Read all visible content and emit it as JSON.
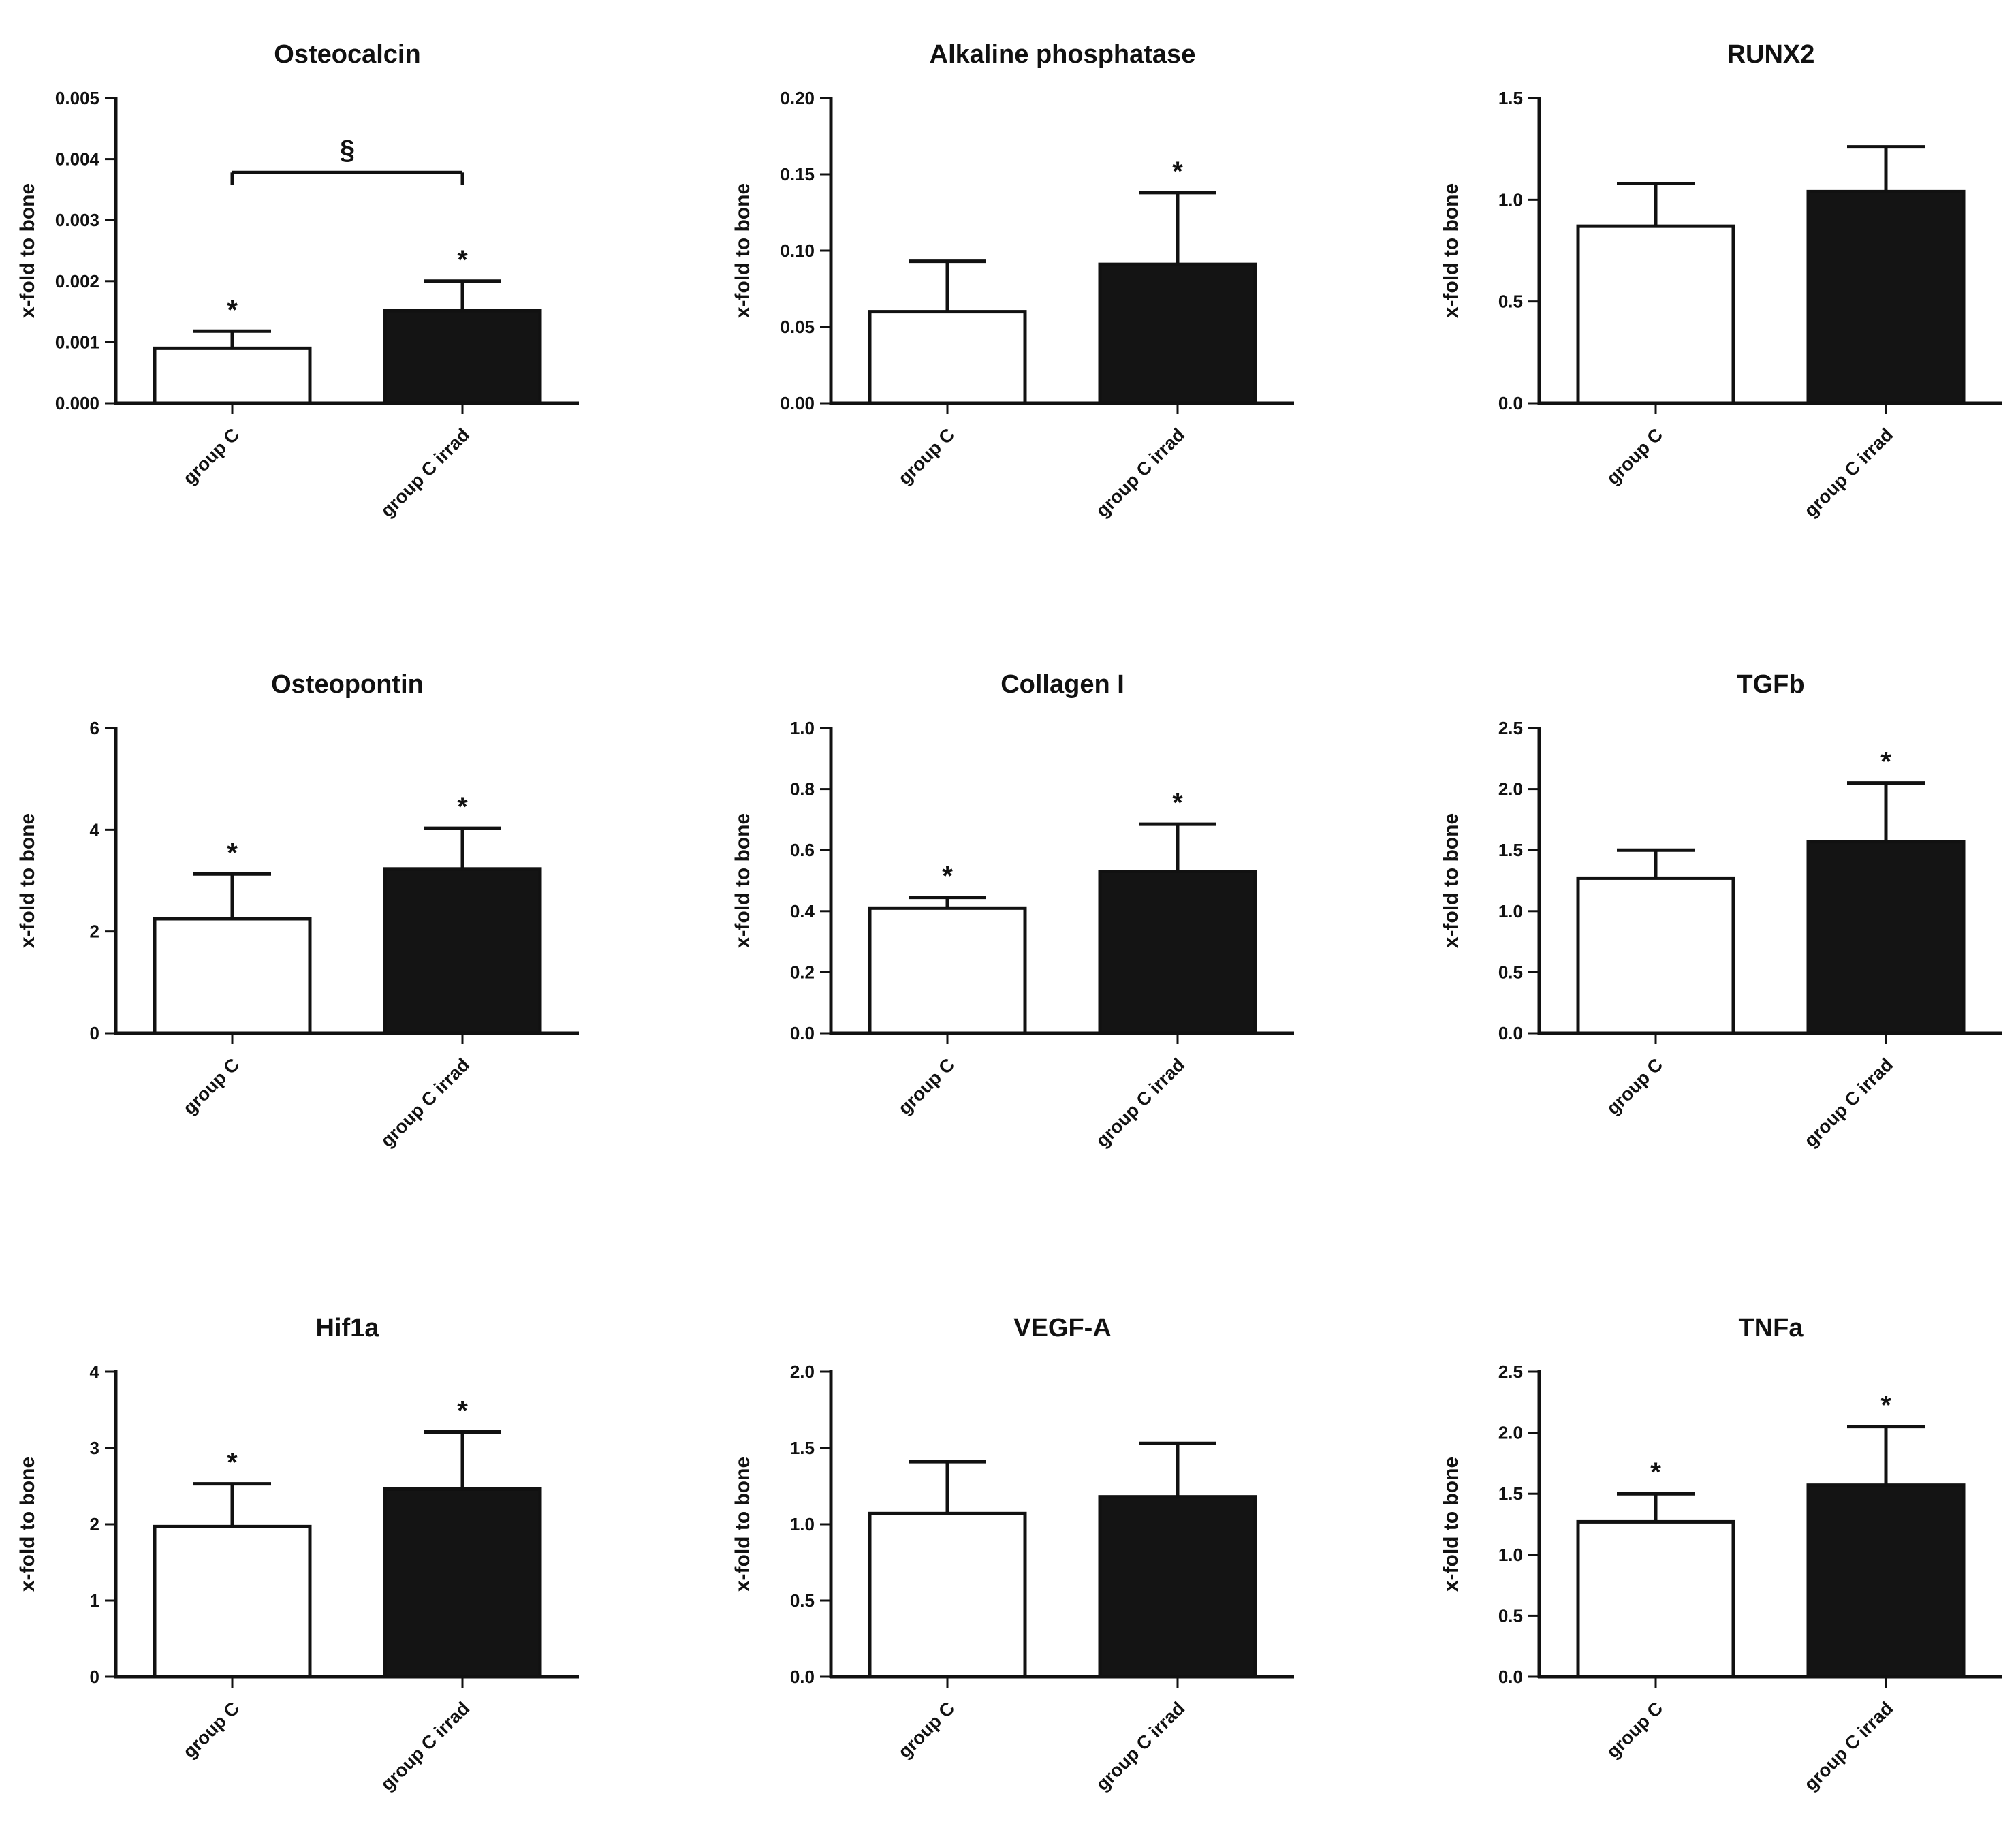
{
  "chart_data": [
    {
      "type": "bar",
      "title": "Osteocalcin",
      "ylabel": "x-fold to bone",
      "categories": [
        "group C",
        "group C irrad"
      ],
      "values": [
        0.0009,
        0.00152
      ],
      "errors": [
        0.00028,
        0.00048
      ],
      "bar_colors": [
        "#ffffff",
        "#141414"
      ],
      "ylim": [
        0,
        0.005
      ],
      "yticks": [
        "0.000",
        "0.001",
        "0.002",
        "0.003",
        "0.004",
        "0.005"
      ],
      "markers": [
        "*",
        "*"
      ],
      "bracket": {
        "from": 0,
        "to": 1,
        "label": "§",
        "value": 0.00378
      }
    },
    {
      "type": "bar",
      "title": "Alkaline phosphatase",
      "ylabel": "x-fold to bone",
      "categories": [
        "group C",
        "group C irrad"
      ],
      "values": [
        0.06,
        0.091
      ],
      "errors": [
        0.033,
        0.047
      ],
      "bar_colors": [
        "#ffffff",
        "#141414"
      ],
      "ylim": [
        0,
        0.2
      ],
      "yticks": [
        "0.00",
        "0.05",
        "0.10",
        "0.15",
        "0.20"
      ],
      "markers": [
        "",
        "*"
      ]
    },
    {
      "type": "bar",
      "title": "RUNX2",
      "ylabel": "x-fold to bone",
      "categories": [
        "group C",
        "group C irrad"
      ],
      "values": [
        0.87,
        1.04
      ],
      "errors": [
        0.21,
        0.22
      ],
      "bar_colors": [
        "#ffffff",
        "#141414"
      ],
      "ylim": [
        0,
        1.5
      ],
      "yticks": [
        "0.0",
        "0.5",
        "1.0",
        "1.5"
      ],
      "markers": [
        "",
        ""
      ]
    },
    {
      "type": "bar",
      "title": "Osteopontin",
      "ylabel": "x-fold to bone",
      "categories": [
        "group C",
        "group C irrad"
      ],
      "values": [
        2.25,
        3.23
      ],
      "errors": [
        0.88,
        0.8
      ],
      "bar_colors": [
        "#ffffff",
        "#141414"
      ],
      "ylim": [
        0,
        6
      ],
      "yticks": [
        "0",
        "2",
        "4",
        "6"
      ],
      "markers": [
        "*",
        "*"
      ]
    },
    {
      "type": "bar",
      "title": "Collagen I",
      "ylabel": "x-fold to bone",
      "categories": [
        "group C",
        "group C irrad"
      ],
      "values": [
        0.41,
        0.53
      ],
      "errors": [
        0.035,
        0.155
      ],
      "bar_colors": [
        "#ffffff",
        "#141414"
      ],
      "ylim": [
        0,
        1.0
      ],
      "yticks": [
        "0.0",
        "0.2",
        "0.4",
        "0.6",
        "0.8",
        "1.0"
      ],
      "markers": [
        "*",
        "*"
      ]
    },
    {
      "type": "bar",
      "title": "TGFb",
      "ylabel": "x-fold to bone",
      "categories": [
        "group C",
        "group C irrad"
      ],
      "values": [
        1.27,
        1.57
      ],
      "errors": [
        0.23,
        0.48
      ],
      "bar_colors": [
        "#ffffff",
        "#141414"
      ],
      "ylim": [
        0,
        2.5
      ],
      "yticks": [
        "0.0",
        "0.5",
        "1.0",
        "1.5",
        "2.0",
        "2.5"
      ],
      "markers": [
        "",
        "*"
      ]
    },
    {
      "type": "bar",
      "title": "Hif1a",
      "ylabel": "x-fold to bone",
      "categories": [
        "group C",
        "group C irrad"
      ],
      "values": [
        1.97,
        2.46
      ],
      "errors": [
        0.56,
        0.75
      ],
      "bar_colors": [
        "#ffffff",
        "#141414"
      ],
      "ylim": [
        0,
        4
      ],
      "yticks": [
        "0",
        "1",
        "2",
        "3",
        "4"
      ],
      "markers": [
        "*",
        "*"
      ]
    },
    {
      "type": "bar",
      "title": "VEGF-A",
      "ylabel": "x-fold to bone",
      "categories": [
        "group C",
        "group C irrad"
      ],
      "values": [
        1.07,
        1.18
      ],
      "errors": [
        0.34,
        0.35
      ],
      "bar_colors": [
        "#ffffff",
        "#141414"
      ],
      "ylim": [
        0,
        2.0
      ],
      "yticks": [
        "0.0",
        "0.5",
        "1.0",
        "1.5",
        "2.0"
      ],
      "markers": [
        "",
        ""
      ]
    },
    {
      "type": "bar",
      "title": "TNFa",
      "ylabel": "x-fold to bone",
      "categories": [
        "group C",
        "group C irrad"
      ],
      "values": [
        1.27,
        1.57
      ],
      "errors": [
        0.23,
        0.48
      ],
      "bar_colors": [
        "#ffffff",
        "#141414"
      ],
      "ylim": [
        0,
        2.5
      ],
      "yticks": [
        "0.0",
        "0.5",
        "1.0",
        "1.5",
        "2.0",
        "2.5"
      ],
      "markers": [
        "*",
        "*"
      ]
    }
  ]
}
